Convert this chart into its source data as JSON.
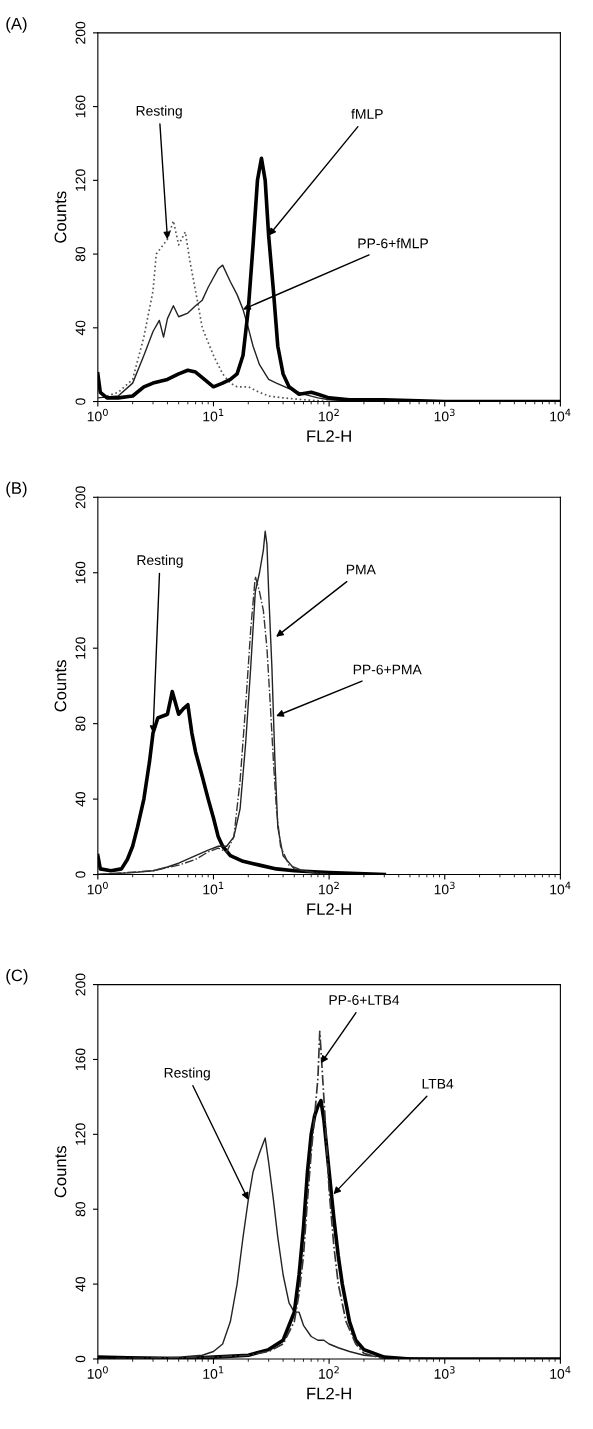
{
  "chart_data": [
    {
      "type": "line",
      "title": "(A)",
      "xlabel": "FL2-H",
      "ylabel": "Counts",
      "log": "x",
      "xlim": [
        1,
        10000
      ],
      "ylim": [
        0,
        200
      ],
      "xticks": [
        {
          "value": 1,
          "label": "10$^{0}$"
        },
        {
          "value": 10,
          "label": "10$^{1}$"
        },
        {
          "value": 100,
          "label": "10$^{2}$"
        },
        {
          "value": 1000,
          "label": "10$^{3}$"
        },
        {
          "value": 10000,
          "label": "10$^{4}$"
        }
      ],
      "yticks": [
        0,
        40,
        80,
        120,
        160,
        200
      ],
      "grid": false,
      "legend": false,
      "series": [
        {
          "color": "#555555",
          "line_style": "dotted",
          "x": [
            1.2,
            1.5,
            2,
            2.5,
            3,
            3.2,
            4,
            4.5,
            5,
            5.7,
            6.3,
            7,
            8,
            9,
            10,
            12,
            14,
            16,
            20,
            25,
            30,
            40,
            60,
            100
          ],
          "values": [
            3,
            5,
            12,
            35,
            60,
            80,
            88,
            98,
            85,
            92,
            75,
            60,
            40,
            32,
            25,
            15,
            10,
            8,
            8,
            5,
            3,
            2,
            1,
            0
          ]
        },
        {
          "color": "#222222",
          "line_style": "solid",
          "x": [
            1,
            1.5,
            2,
            2.5,
            3,
            3.4,
            3.7,
            4,
            4.5,
            5,
            6,
            7,
            8,
            9,
            11,
            12,
            14,
            16,
            18,
            20,
            22,
            25,
            30,
            35,
            45,
            60,
            80,
            100,
            200
          ],
          "values": [
            2,
            3,
            10,
            25,
            38,
            44,
            35,
            45,
            52,
            46,
            48,
            52,
            55,
            62,
            72,
            74,
            65,
            58,
            50,
            40,
            30,
            20,
            12,
            10,
            7,
            4,
            2,
            1,
            0
          ]
        },
        {
          "color": "#000000",
          "line_style": "solid",
          "x": [
            1,
            1.05,
            1.2,
            1.5,
            2,
            2.5,
            3,
            4,
            5,
            6,
            7,
            8,
            10,
            12,
            14,
            16,
            18,
            20,
            22,
            24,
            26,
            28,
            30,
            33,
            36,
            40,
            45,
            55,
            70,
            80,
            100,
            150,
            300,
            1000,
            10000
          ],
          "values": [
            15,
            5,
            2,
            2,
            3,
            8,
            10,
            12,
            15,
            17,
            16,
            13,
            8,
            10,
            12,
            15,
            25,
            50,
            85,
            120,
            132,
            120,
            90,
            60,
            30,
            15,
            8,
            4,
            5,
            4,
            2,
            1,
            1,
            0,
            0
          ]
        }
      ],
      "annotations": [
        {
          "text": "Resting",
          "x": 4,
          "y": 88
        },
        {
          "text": "fMLP",
          "x": 30,
          "y": 90
        },
        {
          "text": "PP-6+fMLP",
          "x": 18,
          "y": 50
        }
      ]
    },
    {
      "type": "line",
      "title": "(B)",
      "xlabel": "FL2-H",
      "ylabel": "Counts",
      "log": "x",
      "xlim": [
        1,
        10000
      ],
      "ylim": [
        0,
        200
      ],
      "xticks": [
        {
          "value": 1,
          "label": "10$^{0}$"
        },
        {
          "value": 10,
          "label": "10$^{1}$"
        },
        {
          "value": 100,
          "label": "10$^{2}$"
        },
        {
          "value": 1000,
          "label": "10$^{3}$"
        },
        {
          "value": 10000,
          "label": "10$^{4}$"
        }
      ],
      "yticks": [
        0,
        40,
        80,
        120,
        160,
        200
      ],
      "grid": false,
      "legend": false,
      "series": [
        {
          "color": "#000000",
          "line_style": "solid",
          "x": [
            1,
            1.05,
            1.3,
            1.6,
            1.8,
            2,
            2.2,
            2.5,
            2.8,
            3,
            3.3,
            4,
            4.4,
            5,
            5.5,
            6,
            6.5,
            7,
            8,
            9,
            10,
            11,
            12,
            14,
            18,
            25,
            35,
            50,
            100,
            300
          ],
          "values": [
            10,
            3,
            2,
            3,
            8,
            15,
            25,
            40,
            60,
            75,
            83,
            85,
            97,
            85,
            88,
            90,
            75,
            65,
            52,
            40,
            30,
            20,
            15,
            10,
            7,
            5,
            3,
            2,
            1,
            0
          ]
        },
        {
          "color": "#222222",
          "line_style": "solid",
          "x": [
            1,
            2,
            3,
            4,
            5,
            7,
            9,
            11,
            13,
            15,
            17,
            19,
            21,
            23,
            25,
            27,
            28,
            29,
            30,
            32,
            34,
            36,
            40,
            50,
            70,
            100
          ],
          "values": [
            0,
            1,
            2,
            4,
            6,
            10,
            13,
            15,
            15,
            20,
            35,
            70,
            110,
            150,
            160,
            172,
            182,
            175,
            150,
            110,
            60,
            25,
            10,
            3,
            1,
            0
          ]
        },
        {
          "color": "#333333",
          "line_style": "dashed",
          "x": [
            1,
            3,
            5,
            7,
            9,
            11,
            13,
            15,
            17,
            19,
            21,
            23,
            25,
            27,
            29,
            31,
            33,
            35,
            38,
            45,
            60,
            100
          ],
          "values": [
            0,
            2,
            5,
            8,
            12,
            14,
            12,
            20,
            50,
            90,
            130,
            158,
            150,
            140,
            120,
            90,
            60,
            35,
            15,
            5,
            2,
            0
          ]
        }
      ],
      "annotations": [
        {
          "text": "Resting",
          "x": 3,
          "y": 75
        },
        {
          "text": "PMA",
          "x": 34.8,
          "y": 126
        },
        {
          "text": "PP-6+PMA",
          "x": 34.8,
          "y": 84
        }
      ]
    },
    {
      "type": "line",
      "title": "(C)",
      "xlabel": "FL2-H",
      "ylabel": "Counts",
      "log": "x",
      "xlim": [
        1,
        10000
      ],
      "ylim": [
        0,
        200
      ],
      "xticks": [
        {
          "value": 1,
          "label": "10$^{0}$"
        },
        {
          "value": 10,
          "label": "10$^{1}$"
        },
        {
          "value": 100,
          "label": "10$^{2}$"
        },
        {
          "value": 1000,
          "label": "10$^{3}$"
        },
        {
          "value": 10000,
          "label": "10$^{4}$"
        }
      ],
      "yticks": [
        0,
        40,
        80,
        120,
        160,
        200
      ],
      "grid": false,
      "legend": false,
      "series": [
        {
          "color": "#222222",
          "line_style": "solid",
          "x": [
            1,
            3,
            5,
            8,
            10,
            12,
            14,
            16,
            18,
            20,
            22,
            25,
            28,
            30,
            33,
            36,
            40,
            45,
            50,
            55,
            60,
            70,
            80,
            90,
            100,
            120,
            150,
            200,
            300,
            1000
          ],
          "values": [
            1,
            1,
            1,
            2,
            4,
            8,
            20,
            40,
            65,
            85,
            100,
            110,
            118,
            105,
            85,
            65,
            45,
            30,
            25,
            25,
            18,
            12,
            10,
            10,
            8,
            6,
            4,
            2,
            1,
            0
          ]
        },
        {
          "color": "#000000",
          "line_style": "solid",
          "x": [
            1,
            5,
            10,
            20,
            30,
            40,
            50,
            55,
            60,
            65,
            70,
            75,
            80,
            85,
            90,
            100,
            110,
            120,
            130,
            150,
            170,
            200,
            300,
            500,
            10000
          ],
          "values": [
            1,
            0,
            1,
            2,
            5,
            10,
            25,
            45,
            70,
            100,
            120,
            130,
            135,
            138,
            128,
            100,
            75,
            55,
            40,
            20,
            10,
            5,
            1,
            0,
            0
          ]
        },
        {
          "color": "#333333",
          "line_style": "dashed",
          "x": [
            1,
            10,
            20,
            30,
            40,
            50,
            55,
            60,
            65,
            70,
            75,
            80,
            83,
            86,
            90,
            95,
            100,
            110,
            120,
            140,
            170,
            200,
            300
          ],
          "values": [
            0,
            1,
            2,
            4,
            8,
            20,
            35,
            55,
            85,
            110,
            130,
            150,
            175,
            160,
            140,
            115,
            90,
            60,
            40,
            20,
            8,
            3,
            0
          ]
        }
      ],
      "annotations": [
        {
          "text": "Resting",
          "x": 20,
          "y": 85
        },
        {
          "text": "LTB4",
          "x": 109,
          "y": 88
        },
        {
          "text": "PP-6+LTB4",
          "x": 85,
          "y": 158
        }
      ]
    }
  ]
}
